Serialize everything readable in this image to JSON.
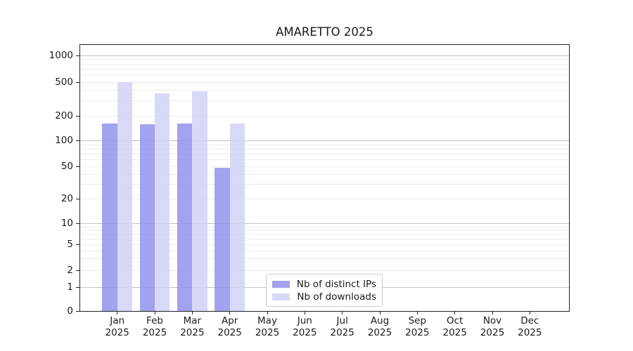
{
  "title": "AMARETTO 2025",
  "chart_data": {
    "type": "bar",
    "title": "AMARETTO 2025",
    "y_scale": "symlog",
    "ylim": [
      0,
      1300
    ],
    "y_ticks": [
      0,
      1,
      2,
      5,
      10,
      20,
      50,
      100,
      200,
      500,
      1000
    ],
    "y_tick_labels": [
      "0",
      "1",
      "2",
      "5",
      "10",
      "20",
      "50",
      "100",
      "200",
      "500",
      "1000"
    ],
    "grid": "horizontal major and minor gridlines",
    "legend_position": "bottom-center inside plot",
    "categories": [
      "Jan 2025",
      "Feb 2025",
      "Mar 2025",
      "Apr 2025",
      "May 2025",
      "Jun 2025",
      "Jul 2025",
      "Aug 2025",
      "Sep 2025",
      "Oct 2025",
      "Nov 2025",
      "Dec 2025"
    ],
    "x_tick_month": [
      "Jan",
      "Feb",
      "Mar",
      "Apr",
      "May",
      "Jun",
      "Jul",
      "Aug",
      "Sep",
      "Oct",
      "Nov",
      "Dec"
    ],
    "x_tick_year": [
      "2025",
      "2025",
      "2025",
      "2025",
      "2025",
      "2025",
      "2025",
      "2025",
      "2025",
      "2025",
      "2025",
      "2025"
    ],
    "series": [
      {
        "name": "Nb of distinct IPs",
        "color": "#a2a2ee",
        "values": [
          161,
          157,
          160,
          48,
          null,
          null,
          null,
          null,
          null,
          null,
          null,
          null
        ]
      },
      {
        "name": "Nb of downloads",
        "color": "#d9d9f7",
        "values": [
          495,
          364,
          385,
          160,
          null,
          null,
          null,
          null,
          null,
          null,
          null,
          null
        ]
      }
    ]
  },
  "colors": {
    "accent_bar_distinct_ips": "#a2a2ee",
    "accent_bar_downloads": "#d9d9f7",
    "grid_major": "#c3c3c3",
    "grid_minor": "#ebebeb",
    "spine": "#222222",
    "text": "#1a1a1a",
    "legend_border": "#cccccc"
  }
}
